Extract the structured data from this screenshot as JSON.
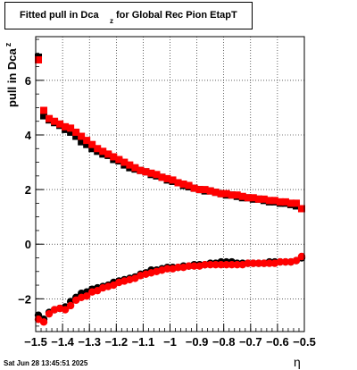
{
  "title": {
    "main": "Fitted pull in Dca",
    "sub": "z",
    "rest": "for Global Rec Pion EtapT"
  },
  "ylabel": {
    "main": "pull in Dca",
    "sub": "z"
  },
  "xlabel": "η",
  "datestamp": "Sat Jun 28 13:45:51 2025",
  "colors": {
    "series_black": "#000000",
    "series_red": "#ff0000",
    "grid": "#000000"
  },
  "chart_data": {
    "type": "scatter",
    "xlim": [
      -1.5,
      -0.5
    ],
    "ylim": [
      -3.2,
      7.6
    ],
    "grid": true,
    "x_ticks": [
      -1.5,
      -1.4,
      -1.3,
      -1.2,
      -1.1,
      -1,
      -0.9,
      -0.8,
      -0.7,
      -0.6,
      -0.5
    ],
    "x_tick_labels": [
      "−1.5",
      "−1.4",
      "−1.3",
      "−1.2",
      "−1.1",
      "−1",
      "−0.9",
      "−0.8",
      "−0.7",
      "−0.6",
      "−0.5"
    ],
    "y_ticks": [
      -2,
      0,
      2,
      4,
      6
    ],
    "y_tick_labels": [
      "−2",
      "0",
      "2",
      "4",
      "6"
    ],
    "series": [
      {
        "marker": "square",
        "color": "#000000",
        "x": [
          -1.49,
          -1.47,
          -1.45,
          -1.43,
          -1.41,
          -1.39,
          -1.37,
          -1.35,
          -1.33,
          -1.31,
          -1.29,
          -1.27,
          -1.25,
          -1.23,
          -1.21,
          -1.19,
          -1.17,
          -1.15,
          -1.13,
          -1.11,
          -1.09,
          -1.07,
          -1.05,
          -1.03,
          -1.01,
          -0.99,
          -0.97,
          -0.95,
          -0.93,
          -0.91,
          -0.89,
          -0.87,
          -0.85,
          -0.83,
          -0.81,
          -0.79,
          -0.77,
          -0.75,
          -0.73,
          -0.71,
          -0.69,
          -0.67,
          -0.65,
          -0.63,
          -0.61,
          -0.59,
          -0.57,
          -0.55,
          -0.53,
          -0.51
        ],
        "y": [
          6.85,
          4.7,
          4.55,
          4.45,
          4.35,
          4.2,
          4.1,
          3.95,
          3.75,
          3.65,
          3.5,
          3.4,
          3.3,
          3.25,
          3.1,
          3.05,
          2.9,
          2.8,
          2.75,
          2.7,
          2.65,
          2.55,
          2.5,
          2.45,
          2.35,
          2.3,
          2.25,
          2.15,
          2.1,
          2.05,
          2.0,
          1.95,
          1.95,
          1.9,
          1.85,
          1.8,
          1.8,
          1.75,
          1.7,
          1.7,
          1.65,
          1.65,
          1.6,
          1.55,
          1.55,
          1.5,
          1.5,
          1.45,
          1.4,
          1.3
        ]
      },
      {
        "marker": "square",
        "color": "#ff0000",
        "x": [
          -1.49,
          -1.47,
          -1.45,
          -1.43,
          -1.41,
          -1.39,
          -1.37,
          -1.35,
          -1.33,
          -1.31,
          -1.29,
          -1.27,
          -1.25,
          -1.23,
          -1.21,
          -1.19,
          -1.17,
          -1.15,
          -1.13,
          -1.11,
          -1.09,
          -1.07,
          -1.05,
          -1.03,
          -1.01,
          -0.99,
          -0.97,
          -0.95,
          -0.93,
          -0.91,
          -0.89,
          -0.87,
          -0.85,
          -0.83,
          -0.81,
          -0.79,
          -0.77,
          -0.75,
          -0.73,
          -0.71,
          -0.69,
          -0.67,
          -0.65,
          -0.63,
          -0.61,
          -0.59,
          -0.57,
          -0.55,
          -0.53,
          -0.51
        ],
        "y": [
          6.75,
          4.9,
          4.6,
          4.5,
          4.4,
          4.3,
          4.25,
          4.1,
          3.95,
          3.8,
          3.65,
          3.5,
          3.4,
          3.3,
          3.2,
          3.1,
          3.0,
          2.9,
          2.8,
          2.7,
          2.65,
          2.6,
          2.55,
          2.45,
          2.4,
          2.35,
          2.25,
          2.2,
          2.15,
          2.05,
          2.0,
          2.0,
          1.95,
          1.9,
          1.85,
          1.85,
          1.8,
          1.8,
          1.75,
          1.7,
          1.7,
          1.65,
          1.65,
          1.6,
          1.6,
          1.55,
          1.55,
          1.5,
          1.5,
          1.3
        ]
      },
      {
        "marker": "circle",
        "color": "#000000",
        "x": [
          -1.49,
          -1.47,
          -1.45,
          -1.43,
          -1.41,
          -1.39,
          -1.37,
          -1.35,
          -1.33,
          -1.31,
          -1.29,
          -1.27,
          -1.25,
          -1.23,
          -1.21,
          -1.19,
          -1.17,
          -1.15,
          -1.13,
          -1.11,
          -1.09,
          -1.07,
          -1.05,
          -1.03,
          -1.01,
          -0.99,
          -0.97,
          -0.95,
          -0.93,
          -0.91,
          -0.89,
          -0.87,
          -0.85,
          -0.83,
          -0.81,
          -0.79,
          -0.77,
          -0.75,
          -0.73,
          -0.71,
          -0.69,
          -0.67,
          -0.65,
          -0.63,
          -0.61,
          -0.59,
          -0.57,
          -0.55,
          -0.53,
          -0.51
        ],
        "y": [
          -2.6,
          -2.75,
          -2.5,
          -2.4,
          -2.35,
          -2.3,
          -2.1,
          -1.95,
          -1.8,
          -1.75,
          -1.65,
          -1.6,
          -1.55,
          -1.5,
          -1.4,
          -1.35,
          -1.3,
          -1.25,
          -1.2,
          -1.1,
          -1.05,
          -0.95,
          -0.95,
          -0.9,
          -0.85,
          -0.85,
          -0.85,
          -0.8,
          -0.8,
          -0.75,
          -0.75,
          -0.75,
          -0.7,
          -0.7,
          -0.65,
          -0.65,
          -0.65,
          -0.7,
          -0.7,
          -0.7,
          -0.7,
          -0.7,
          -0.7,
          -0.65,
          -0.65,
          -0.65,
          -0.65,
          -0.65,
          -0.6,
          -0.5
        ]
      },
      {
        "marker": "circle",
        "color": "#ff0000",
        "x": [
          -1.49,
          -1.47,
          -1.45,
          -1.43,
          -1.41,
          -1.39,
          -1.37,
          -1.35,
          -1.33,
          -1.31,
          -1.29,
          -1.27,
          -1.25,
          -1.23,
          -1.21,
          -1.19,
          -1.17,
          -1.15,
          -1.13,
          -1.11,
          -1.09,
          -1.07,
          -1.05,
          -1.03,
          -1.01,
          -0.99,
          -0.97,
          -0.95,
          -0.93,
          -0.91,
          -0.89,
          -0.87,
          -0.85,
          -0.83,
          -0.81,
          -0.79,
          -0.77,
          -0.75,
          -0.73,
          -0.71,
          -0.69,
          -0.67,
          -0.65,
          -0.63,
          -0.61,
          -0.59,
          -0.57,
          -0.55,
          -0.53,
          -0.51
        ],
        "y": [
          -2.75,
          -2.85,
          -2.55,
          -2.4,
          -2.35,
          -2.4,
          -2.25,
          -2.05,
          -1.95,
          -1.9,
          -1.75,
          -1.7,
          -1.6,
          -1.55,
          -1.5,
          -1.4,
          -1.35,
          -1.3,
          -1.25,
          -1.15,
          -1.1,
          -1.05,
          -1.0,
          -0.95,
          -0.9,
          -0.9,
          -0.85,
          -0.85,
          -0.8,
          -0.8,
          -0.8,
          -0.75,
          -0.75,
          -0.75,
          -0.75,
          -0.75,
          -0.75,
          -0.75,
          -0.75,
          -0.7,
          -0.7,
          -0.7,
          -0.7,
          -0.7,
          -0.7,
          -0.65,
          -0.65,
          -0.65,
          -0.6,
          -0.45
        ]
      }
    ]
  }
}
